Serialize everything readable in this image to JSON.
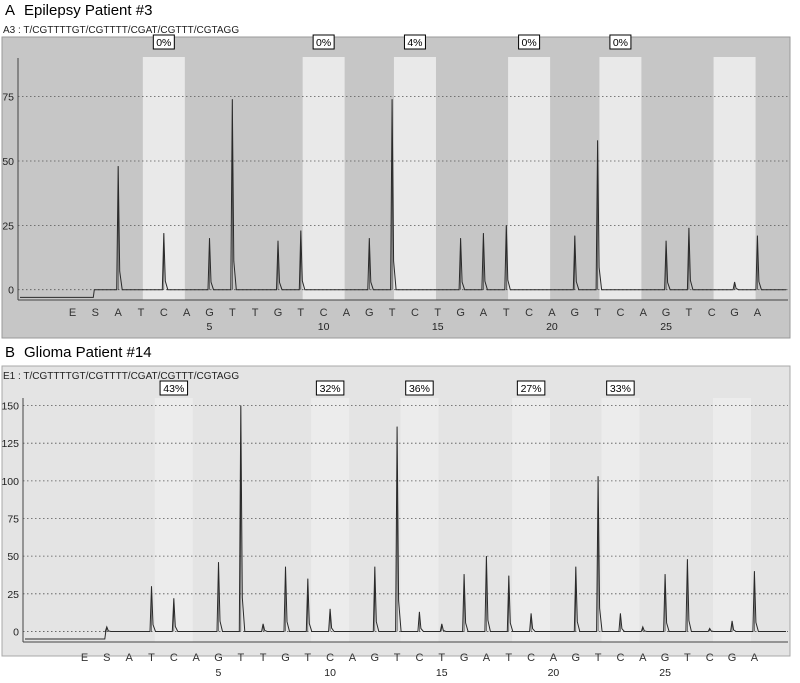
{
  "chart_data": [
    {
      "type": "line",
      "panel_letter": "A",
      "title": "Epilepsy Patient #3",
      "sequence_label": "A3 : T/CGTTTTGT/CGTTTT/CGAT/CGTTT/CGTAGG",
      "dispensation": [
        "E",
        "S",
        "A",
        "T",
        "C",
        "A",
        "G",
        "T",
        "T",
        "G",
        "T",
        "C",
        "A",
        "G",
        "T",
        "C",
        "T",
        "G",
        "A",
        "T",
        "C",
        "A",
        "G",
        "T",
        "C",
        "A",
        "G",
        "T",
        "C",
        "G",
        "A"
      ],
      "x_tick_labels": [
        "5",
        "10",
        "15",
        "20",
        "25"
      ],
      "y_ticks": [
        0,
        25,
        50,
        75
      ],
      "ylim": [
        -4,
        90
      ],
      "grid": true,
      "highlight_positions": [
        4,
        11,
        15,
        20,
        24,
        29
      ],
      "methylation": [
        {
          "position": 4,
          "label": "0%"
        },
        {
          "position": 11,
          "label": "0%"
        },
        {
          "position": 15,
          "label": "4%"
        },
        {
          "position": 20,
          "label": "0%"
        },
        {
          "position": 24,
          "label": "0%"
        }
      ],
      "peaks": [
        0,
        0,
        48,
        0,
        22,
        0,
        20,
        74,
        0,
        19,
        23,
        0,
        0,
        20,
        74,
        0,
        0,
        20,
        22,
        25,
        0,
        0,
        21,
        58,
        0,
        0,
        19,
        24,
        0,
        3,
        21
      ]
    },
    {
      "type": "line",
      "panel_letter": "B",
      "title": "Glioma Patient #14",
      "sequence_label": "E1 : T/CGTTTTGT/CGTTTT/CGAT/CGTTT/CGTAGG",
      "dispensation": [
        "E",
        "S",
        "A",
        "T",
        "C",
        "A",
        "G",
        "T",
        "T",
        "G",
        "T",
        "C",
        "A",
        "G",
        "T",
        "C",
        "T",
        "G",
        "A",
        "T",
        "C",
        "A",
        "G",
        "T",
        "C",
        "A",
        "G",
        "T",
        "C",
        "G",
        "A"
      ],
      "x_tick_labels": [
        "5",
        "10",
        "15",
        "20",
        "25"
      ],
      "y_ticks": [
        0,
        25,
        50,
        75,
        100,
        125,
        150
      ],
      "ylim": [
        -7,
        155
      ],
      "grid": true,
      "highlight_positions": [
        4,
        11,
        15,
        20,
        24,
        29
      ],
      "methylation": [
        {
          "position": 4,
          "label": "43%"
        },
        {
          "position": 11,
          "label": "32%"
        },
        {
          "position": 15,
          "label": "36%"
        },
        {
          "position": 20,
          "label": "27%"
        },
        {
          "position": 24,
          "label": "33%"
        }
      ],
      "peaks": [
        0,
        3,
        0,
        30,
        22,
        0,
        46,
        150,
        5,
        43,
        35,
        15,
        0,
        43,
        136,
        13,
        5,
        38,
        50,
        37,
        12,
        0,
        43,
        103,
        12,
        3,
        38,
        48,
        2,
        7,
        40
      ]
    }
  ],
  "colors": {
    "plot_bg_a": "#c6c6c6",
    "plot_bg_b": "#e4e4e4",
    "highlight_a": "#e9e9e9",
    "highlight_b": "#ececec",
    "trace": "#2a2a2a"
  }
}
